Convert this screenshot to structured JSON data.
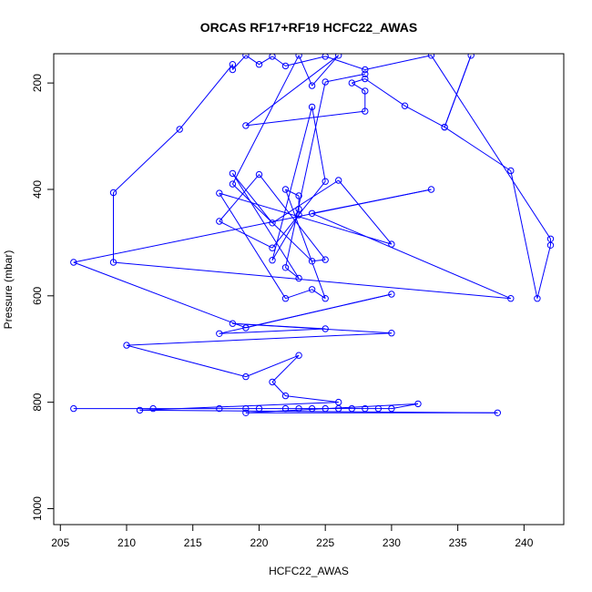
{
  "chart_data": {
    "type": "line",
    "title": "ORCAS RF17+RF19 HCFC22_AWAS",
    "xlabel": "HCFC22_AWAS",
    "ylabel": "Pressure (mbar)",
    "xlim": [
      204.5,
      243.0
    ],
    "ylim": [
      1030,
      145
    ],
    "y_inverted": true,
    "x_ticks": [
      205,
      210,
      215,
      220,
      225,
      230,
      235,
      240
    ],
    "y_ticks": [
      200,
      400,
      600,
      800,
      1000
    ],
    "grid": false,
    "legend": "none",
    "markers": "open-circle",
    "series": [
      {
        "color": "#0000ff",
        "points": [
          [
            206,
            812
          ],
          [
            212,
            812
          ],
          [
            217,
            812
          ],
          [
            219,
            812
          ],
          [
            220,
            812
          ],
          [
            222,
            812
          ],
          [
            223,
            812
          ],
          [
            224,
            812
          ],
          [
            225,
            812
          ],
          [
            226,
            812
          ],
          [
            227,
            812
          ],
          [
            228,
            812
          ],
          [
            229,
            812
          ],
          [
            230,
            812
          ],
          [
            232,
            803
          ],
          [
            219,
            820
          ],
          [
            238,
            820
          ],
          [
            211,
            815
          ],
          [
            226,
            800
          ],
          [
            222,
            788
          ],
          [
            221,
            762
          ],
          [
            223,
            712
          ],
          [
            219,
            752
          ],
          [
            210,
            693
          ],
          [
            230,
            670
          ],
          [
            218,
            652
          ],
          [
            225,
            662
          ],
          [
            217,
            671
          ],
          [
            230,
            597
          ],
          [
            219,
            660
          ],
          [
            206,
            537
          ],
          [
            233,
            400
          ],
          [
            224,
            445
          ],
          [
            239,
            605
          ],
          [
            209,
            537
          ],
          [
            209,
            406
          ],
          [
            214,
            287
          ],
          [
            218,
            165
          ],
          [
            218,
            175
          ],
          [
            219,
            148
          ],
          [
            220,
            165
          ],
          [
            221,
            150
          ],
          [
            222,
            168
          ],
          [
            225,
            150
          ],
          [
            228,
            175
          ],
          [
            233,
            148
          ],
          [
            242,
            493
          ],
          [
            242,
            505
          ],
          [
            241,
            605
          ],
          [
            239,
            365
          ],
          [
            234,
            283
          ],
          [
            236,
            148
          ],
          [
            234,
            283
          ],
          [
            231,
            243
          ],
          [
            228,
            192
          ],
          [
            227,
            200
          ],
          [
            228,
            215
          ],
          [
            228,
            253
          ],
          [
            219,
            280
          ],
          [
            226,
            148
          ],
          [
            224,
            205
          ],
          [
            223,
            148
          ],
          [
            218,
            390
          ],
          [
            224,
            535
          ],
          [
            225,
            532
          ],
          [
            220,
            372
          ],
          [
            217,
            460
          ],
          [
            221,
            510
          ],
          [
            225,
            385
          ],
          [
            224,
            245
          ],
          [
            221,
            533
          ],
          [
            223,
            448
          ],
          [
            223,
            437
          ],
          [
            223,
            412
          ],
          [
            222,
            400
          ],
          [
            225,
            605
          ],
          [
            224,
            588
          ],
          [
            222,
            605
          ],
          [
            217,
            407
          ],
          [
            230,
            503
          ],
          [
            226,
            383
          ],
          [
            221,
            463
          ],
          [
            218,
            370
          ],
          [
            223,
            567
          ],
          [
            222,
            547
          ],
          [
            225,
            198
          ],
          [
            228,
            183
          ]
        ]
      }
    ]
  }
}
